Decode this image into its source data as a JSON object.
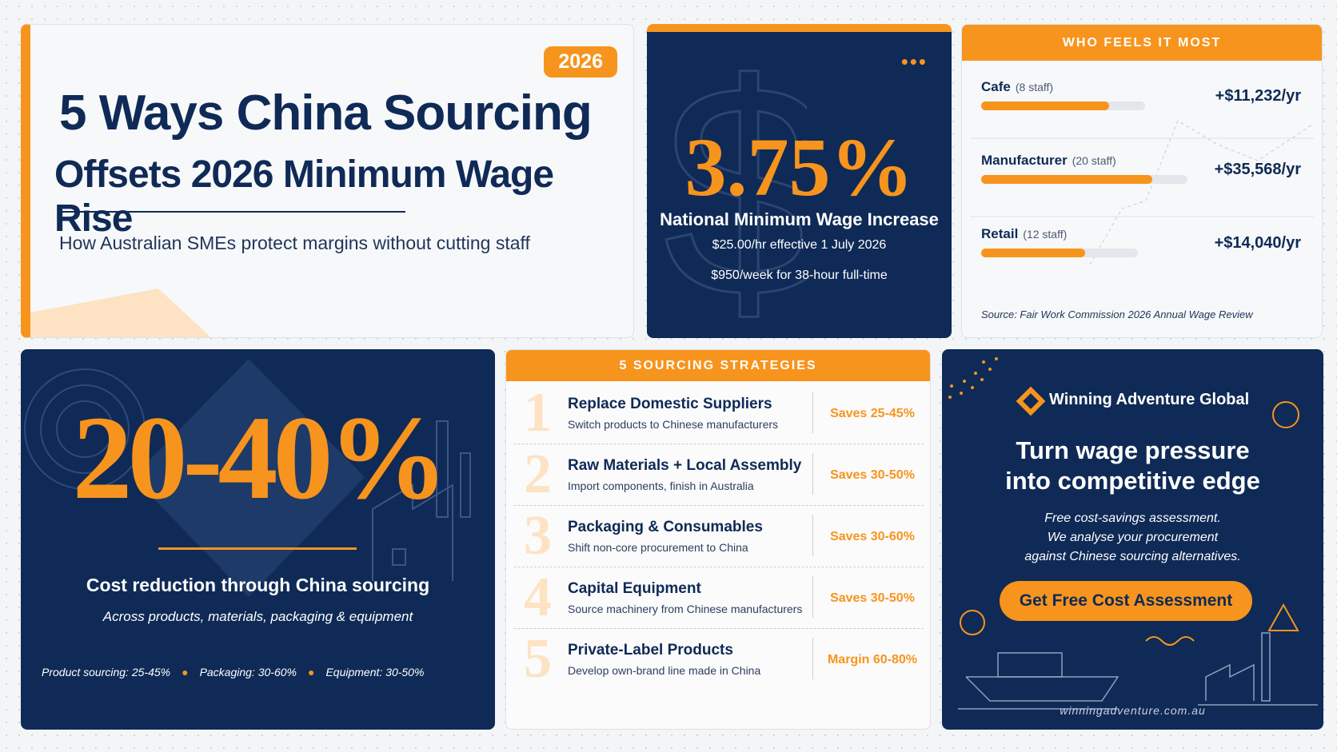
{
  "header": {
    "badge": "2026",
    "title_line1": "5 Ways China Sourcing",
    "title_line2": "Offsets 2026 Minimum Wage Rise",
    "subtitle": "How Australian SMEs protect margins without cutting staff"
  },
  "wage": {
    "value": "3.75%",
    "label": "National Minimum Wage Increase",
    "details": [
      "$25.00/hr effective 1 July 2026",
      "$950/week for 38-hour full-time"
    ]
  },
  "impact": {
    "heading": "WHO FEELS IT MOST",
    "rows": [
      {
        "business": "Cafe",
        "staff": "(8 staff)",
        "cost": "+$11,232/yr"
      },
      {
        "business": "Manufacturer",
        "staff": "(20 staff)",
        "cost": "+$35,568/yr"
      },
      {
        "business": "Retail",
        "staff": "(12 staff)",
        "cost": "+$14,040/yr"
      }
    ],
    "source": "Source: Fair Work Commission 2026 Annual Wage Review"
  },
  "savings": {
    "value": "20-40%",
    "label": "Cost reduction through China sourcing",
    "sublabel": "Across products, materials, packaging & equipment",
    "breakdown": [
      "Product sourcing: 25-45%",
      "Packaging: 30-60%",
      "Equipment: 30-50%"
    ]
  },
  "strategies": {
    "heading": "5 SOURCING STRATEGIES",
    "items": [
      {
        "number": "1",
        "title": "Replace Domestic Suppliers",
        "desc": "Switch products to Chinese manufacturers",
        "saving": "Saves 25-45%"
      },
      {
        "number": "2",
        "title": "Raw Materials + Local Assembly",
        "desc": "Import components, finish in Australia",
        "saving": "Saves 30-50%"
      },
      {
        "number": "3",
        "title": "Packaging & Consumables",
        "desc": "Shift non-core procurement to China",
        "saving": "Saves 30-60%"
      },
      {
        "number": "4",
        "title": "Capital Equipment",
        "desc": "Source machinery from Chinese manufacturers",
        "saving": "Saves 30-50%"
      },
      {
        "number": "5",
        "title": "Private-Label Products",
        "desc": "Develop own-brand line made in China",
        "saving": "Margin 60-80%"
      }
    ]
  },
  "cta": {
    "brand": "Winning Adventure Global",
    "headline": [
      "Turn wage pressure",
      "into competitive edge"
    ],
    "body": [
      "Free cost-savings assessment.",
      "We analyse your procurement",
      "against Chinese sourcing alternatives."
    ],
    "button": "Get Free Cost Assessment",
    "url": "winningadventure.com.au"
  }
}
